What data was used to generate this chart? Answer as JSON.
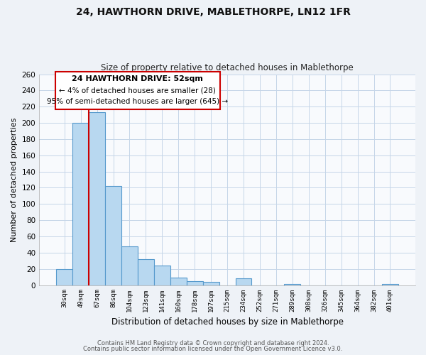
{
  "title": "24, HAWTHORN DRIVE, MABLETHORPE, LN12 1FR",
  "subtitle": "Size of property relative to detached houses in Mablethorpe",
  "xlabel": "Distribution of detached houses by size in Mablethorpe",
  "ylabel": "Number of detached properties",
  "bar_labels": [
    "30sqm",
    "49sqm",
    "67sqm",
    "86sqm",
    "104sqm",
    "123sqm",
    "141sqm",
    "160sqm",
    "178sqm",
    "197sqm",
    "215sqm",
    "234sqm",
    "252sqm",
    "271sqm",
    "289sqm",
    "308sqm",
    "326sqm",
    "345sqm",
    "364sqm",
    "382sqm",
    "401sqm"
  ],
  "bar_values": [
    20,
    200,
    213,
    122,
    48,
    32,
    24,
    9,
    5,
    4,
    0,
    8,
    0,
    0,
    1,
    0,
    0,
    0,
    0,
    0,
    1
  ],
  "bar_color": "#b8d8f0",
  "bar_edge_color": "#5599cc",
  "ylim": [
    0,
    260
  ],
  "yticks": [
    0,
    20,
    40,
    60,
    80,
    100,
    120,
    140,
    160,
    180,
    200,
    220,
    240,
    260
  ],
  "vline_color": "#cc0000",
  "vline_x": 1.5,
  "annotation_title": "24 HAWTHORN DRIVE: 52sqm",
  "annotation_line1": "← 4% of detached houses are smaller (28)",
  "annotation_line2": "95% of semi-detached houses are larger (645) →",
  "annotation_box_color": "#ffffff",
  "annotation_box_edge": "#cc0000",
  "footer_line1": "Contains HM Land Registry data © Crown copyright and database right 2024.",
  "footer_line2": "Contains public sector information licensed under the Open Government Licence v3.0.",
  "background_color": "#eef2f7",
  "plot_background": "#f8fafd",
  "grid_color": "#c5d5e8"
}
